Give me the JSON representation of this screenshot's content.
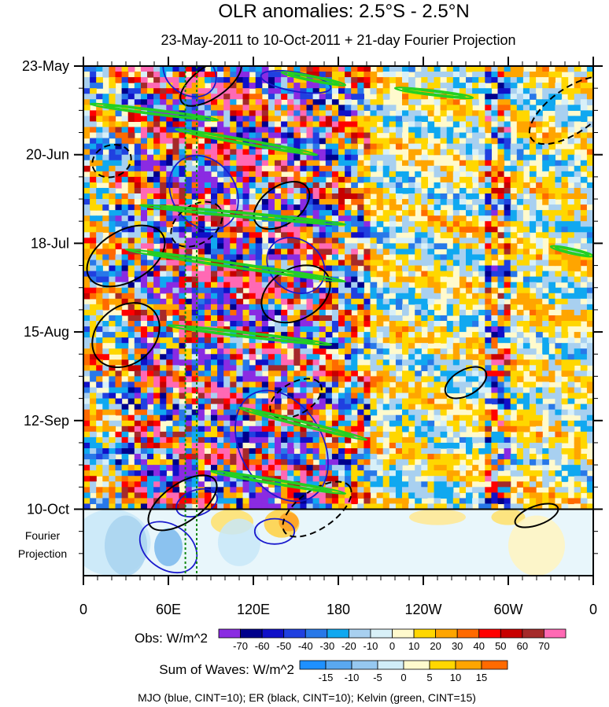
{
  "chart_data": {
    "type": "heatmap",
    "title": "OLR anomalies: 2.5°S - 2.5°N",
    "subtitle": "23-May-2011 to 10-Oct-2011 + 21-day Fourier Projection",
    "x_axis": {
      "ticks": [
        "0",
        "60E",
        "120E",
        "180",
        "120W",
        "60W",
        "0"
      ],
      "lon_values": [
        0,
        60,
        120,
        180,
        240,
        300,
        360
      ],
      "range": [
        0,
        360
      ]
    },
    "y_axis": {
      "ticks": [
        "23-May",
        "20-Jun",
        "18-Jul",
        "15-Aug",
        "12-Sep",
        "10-Oct"
      ],
      "day_values": [
        0,
        28,
        56,
        84,
        112,
        140
      ],
      "range_days": [
        0,
        161
      ],
      "reversed": true
    },
    "projection_label": [
      "Fourier",
      "Projection"
    ],
    "projection_start_day": 140,
    "projection_days": 21,
    "reference_lines_lon": [
      72,
      80
    ],
    "observed_colorbar": {
      "label": "Obs: W/m^2",
      "tick_labels": [
        "-70",
        "-60",
        "-50",
        "-40",
        "-30",
        "-20",
        "-10",
        "0",
        "10",
        "20",
        "30",
        "40",
        "50",
        "60",
        "70"
      ],
      "colors": [
        "#8a2be2",
        "#00008b",
        "#1010c8",
        "#2040e0",
        "#2878e8",
        "#10a8f0",
        "#a8d0f0",
        "#d8f0f8",
        "#fffacd",
        "#ffd700",
        "#ffa500",
        "#ff6a00",
        "#ff0000",
        "#c80000",
        "#a52a2a",
        "#ff69b4"
      ]
    },
    "waves_colorbar": {
      "label": "Sum of Waves: W/m^2",
      "tick_labels": [
        "-15",
        "-10",
        "-5",
        "0",
        "5",
        "10",
        "15"
      ],
      "colors": [
        "#1e90ff",
        "#5aa8f0",
        "#96c8f0",
        "#d0ecf8",
        "#fffacd",
        "#ffd700",
        "#ffa500",
        "#ff6a00"
      ]
    },
    "legend_note": "MJO (blue, CINT=10); ER (black, CINT=10); Kelvin (green, CINT=15)",
    "series": [
      {
        "name": "MJO",
        "color": "#1a1acd",
        "contour_interval": 10
      },
      {
        "name": "ER",
        "color": "#000000",
        "contour_interval": 10
      },
      {
        "name": "Kelvin",
        "color": "#22d022",
        "contour_interval": 15
      }
    ],
    "features": {
      "mjo": [
        {
          "lon": 75,
          "day": 2,
          "dlon": 20,
          "dday": 7,
          "angle": 35
        },
        {
          "lon": 85,
          "day": 40,
          "dlon": 28,
          "dday": 10,
          "angle": 55
        },
        {
          "lon": 150,
          "day": 63,
          "dlon": 22,
          "dday": 8,
          "angle": 40
        },
        {
          "lon": 140,
          "day": 120,
          "dlon": 42,
          "dday": 13,
          "angle": 60
        },
        {
          "lon": 60,
          "day": 152,
          "dlon": 22,
          "dday": 7,
          "angle": 35
        },
        {
          "lon": 135,
          "day": 147,
          "dlon": 14,
          "dday": 4,
          "angle": 0
        },
        {
          "lon": 150,
          "day": 5,
          "dlon": 25,
          "dday": 3,
          "angle": 10
        },
        {
          "lon": 80,
          "day": 138,
          "dlon": 15,
          "dday": 4,
          "angle": -20
        }
      ],
      "er": [
        {
          "lon": 90,
          "day": 5,
          "dlon": 25,
          "dday": 5,
          "angle": -35,
          "dashed": false
        },
        {
          "lon": 345,
          "day": 14,
          "dlon": 35,
          "dday": 7,
          "angle": -35,
          "dashed": true
        },
        {
          "lon": 20,
          "day": 30,
          "dlon": 14,
          "dday": 5,
          "angle": -20,
          "dashed": true
        },
        {
          "lon": 140,
          "day": 44,
          "dlon": 22,
          "dday": 6,
          "angle": -35,
          "dashed": false
        },
        {
          "lon": 30,
          "day": 60,
          "dlon": 30,
          "dday": 8,
          "angle": -30,
          "dashed": false
        },
        {
          "lon": 80,
          "day": 50,
          "dlon": 20,
          "dday": 6,
          "angle": -35,
          "dashed": true
        },
        {
          "lon": 150,
          "day": 72,
          "dlon": 26,
          "dday": 8,
          "angle": -30,
          "dashed": false
        },
        {
          "lon": 30,
          "day": 85,
          "dlon": 26,
          "dday": 9,
          "angle": -40,
          "dashed": false
        },
        {
          "lon": 150,
          "day": 105,
          "dlon": 20,
          "dday": 5,
          "angle": -30,
          "dashed": true
        },
        {
          "lon": 270,
          "day": 100,
          "dlon": 16,
          "dday": 4,
          "angle": -30,
          "dashed": false
        },
        {
          "lon": 165,
          "day": 140,
          "dlon": 28,
          "dday": 6,
          "angle": -35,
          "dashed": true
        },
        {
          "lon": 70,
          "day": 138,
          "dlon": 28,
          "dday": 6,
          "angle": -35,
          "dashed": false
        },
        {
          "lon": 320,
          "day": 142,
          "dlon": 16,
          "dday": 3,
          "angle": -20,
          "dashed": false
        }
      ],
      "kelvin": [
        {
          "lon1": 5,
          "day1": 12,
          "lon2": 95,
          "day2": 17
        },
        {
          "lon1": 65,
          "day1": 20,
          "lon2": 165,
          "day2": 28
        },
        {
          "lon1": 40,
          "day1": 44,
          "lon2": 185,
          "day2": 50
        },
        {
          "lon1": 30,
          "day1": 58,
          "lon2": 185,
          "day2": 68
        },
        {
          "lon1": 60,
          "day1": 82,
          "lon2": 175,
          "day2": 88
        },
        {
          "lon1": 110,
          "day1": 108,
          "lon2": 200,
          "day2": 118
        },
        {
          "lon1": 90,
          "day1": 128,
          "lon2": 185,
          "day2": 135
        },
        {
          "lon1": 220,
          "day1": 7,
          "lon2": 275,
          "day2": 10
        },
        {
          "lon1": 330,
          "day1": 57,
          "lon2": 360,
          "day2": 60
        },
        {
          "lon1": 140,
          "day1": 2,
          "lon2": 185,
          "day2": 6
        }
      ]
    }
  }
}
